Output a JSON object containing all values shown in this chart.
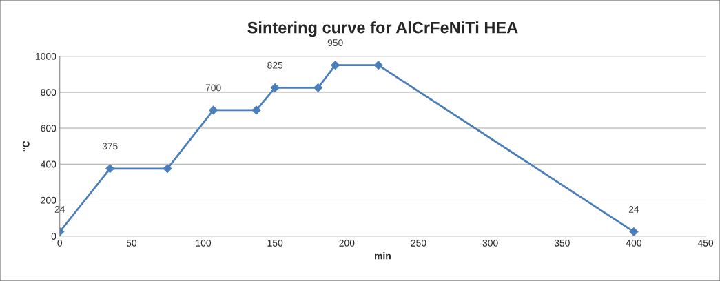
{
  "chart_data": {
    "type": "line",
    "title": "Sintering curve for AlCrFeNiTi HEA",
    "xlabel": "min",
    "ylabel": "°C",
    "x": [
      0,
      35,
      75,
      107,
      137,
      150,
      180,
      192,
      222,
      400
    ],
    "series": [
      {
        "color": "#4a7ebb",
        "values": [
          24,
          375,
          375,
          700,
          700,
          825,
          825,
          950,
          950,
          24
        ],
        "value_labels": [
          "24",
          "375",
          null,
          "700",
          null,
          "825",
          null,
          "950",
          null,
          "24"
        ]
      }
    ],
    "xlim": [
      0,
      450
    ],
    "xticks": [
      0,
      50,
      100,
      150,
      200,
      250,
      300,
      350,
      400,
      450
    ],
    "ylim": [
      0,
      1000
    ],
    "yticks": [
      0,
      200,
      400,
      600,
      800,
      1000
    ],
    "grid": "y",
    "legend": false,
    "marker": "diamond",
    "line_style": "solid"
  }
}
